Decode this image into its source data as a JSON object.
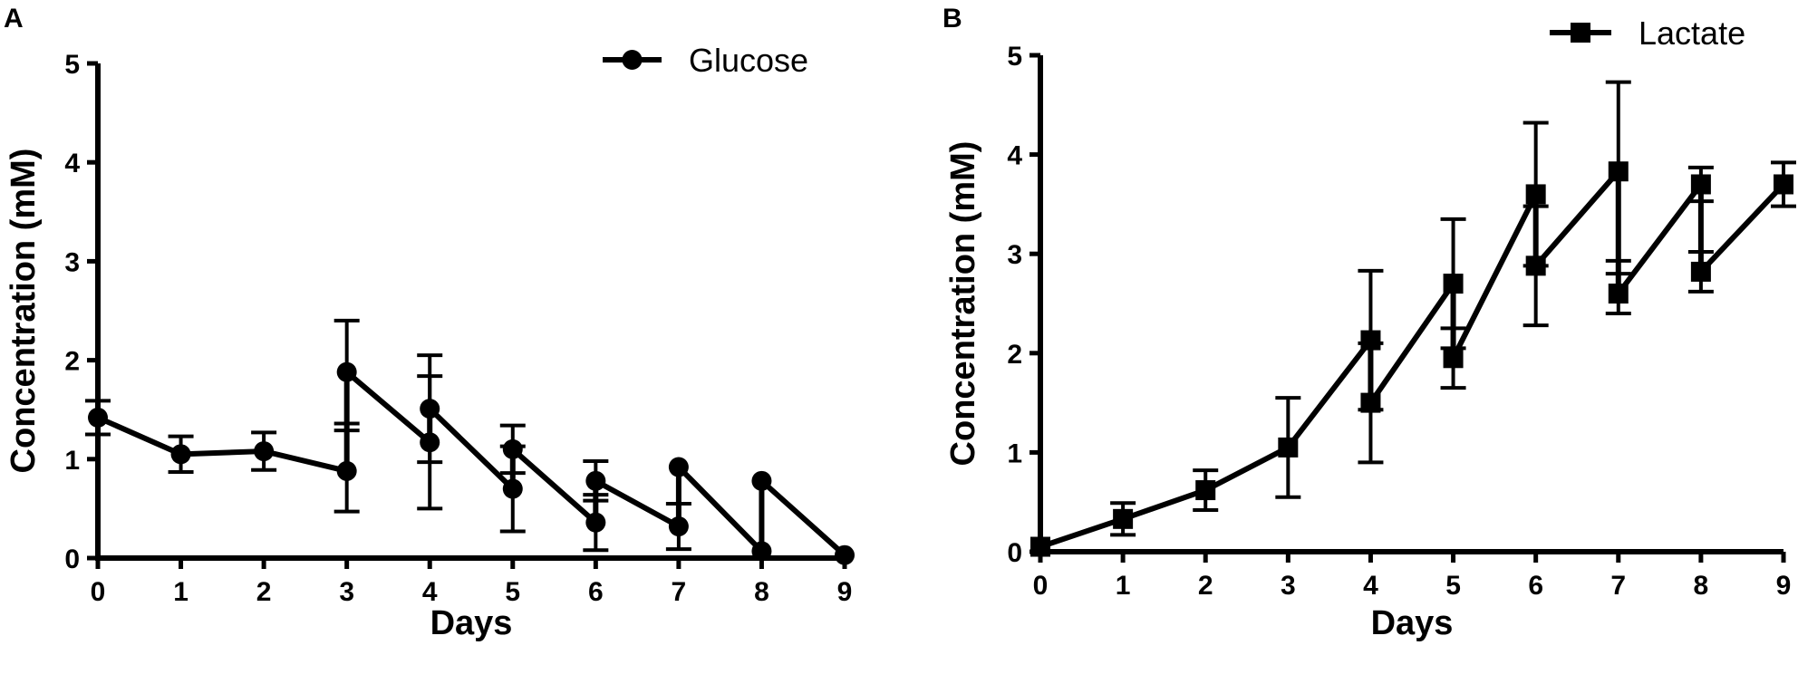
{
  "panels": {
    "a": {
      "letter": "A"
    },
    "b": {
      "letter": "B"
    }
  },
  "chart_data": [
    {
      "type": "line",
      "panel": "A",
      "xlabel": "Days",
      "ylabel": "Concentration (mM)",
      "xlim": [
        0,
        9
      ],
      "ylim": [
        0,
        5
      ],
      "xticks": [
        0,
        1,
        2,
        3,
        4,
        5,
        6,
        7,
        8,
        9
      ],
      "yticks": [
        0,
        1,
        2,
        3,
        4,
        5
      ],
      "marker": "circle",
      "color": "#000000",
      "grid": false,
      "legend_position": "top-right",
      "series": [
        {
          "name": "Glucose",
          "x": [
            0,
            1,
            2,
            3,
            3,
            4,
            4,
            5,
            5,
            6,
            6,
            7,
            7,
            8,
            8,
            9
          ],
          "y": [
            1.42,
            1.05,
            1.08,
            0.88,
            1.88,
            1.17,
            1.51,
            0.7,
            1.1,
            0.36,
            0.78,
            0.32,
            0.92,
            0.07,
            0.78,
            0.03
          ],
          "error": [
            0.17,
            0.18,
            0.19,
            0.41,
            0.52,
            0.67,
            0.54,
            0.43,
            0.24,
            0.28,
            0.2,
            0.23,
            0.0,
            0.0,
            0.0,
            0.0
          ]
        }
      ]
    },
    {
      "type": "line",
      "panel": "B",
      "xlabel": "Days",
      "ylabel": "Concentration (mM)",
      "xlim": [
        0,
        9
      ],
      "ylim": [
        0,
        5
      ],
      "xticks": [
        0,
        1,
        2,
        3,
        4,
        5,
        6,
        7,
        8,
        9
      ],
      "yticks": [
        0,
        1,
        2,
        3,
        4,
        5
      ],
      "marker": "square",
      "color": "#000000",
      "grid": false,
      "legend_position": "top-right",
      "series": [
        {
          "name": "Lactate",
          "x": [
            0,
            1,
            2,
            3,
            4,
            4,
            5,
            5,
            6,
            6,
            7,
            7,
            8,
            8,
            9
          ],
          "y": [
            0.05,
            0.33,
            0.62,
            1.05,
            2.13,
            1.5,
            2.7,
            1.95,
            3.6,
            2.88,
            3.83,
            2.6,
            3.7,
            2.82,
            3.7
          ],
          "error": [
            0.0,
            0.16,
            0.2,
            0.5,
            0.7,
            0.6,
            0.65,
            0.3,
            0.72,
            0.6,
            0.9,
            0.2,
            0.17,
            0.2,
            0.22
          ]
        }
      ]
    }
  ]
}
